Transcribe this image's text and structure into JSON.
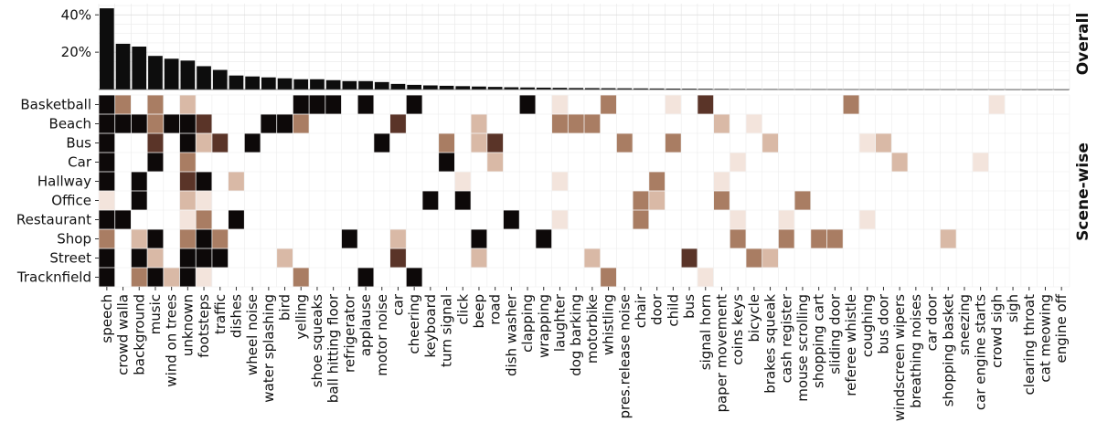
{
  "chart_data": [
    {
      "type": "bar",
      "panel": "Overall",
      "categories": [
        "speech",
        "crowd walla",
        "background",
        "music",
        "wind on trees",
        "unknown",
        "footsteps",
        "traffic",
        "dishes",
        "wheel noise",
        "water splashing",
        "bird",
        "yelling",
        "shoe squeaks",
        "ball hitting floor",
        "refrigerator",
        "applause",
        "motor noise",
        "car",
        "cheering",
        "keyboard",
        "turn signal",
        "click",
        "beep",
        "road",
        "dish washer",
        "clapping",
        "wrapping",
        "laughter",
        "dog barking",
        "motorbike",
        "whistling",
        "pres.release noise",
        "chair",
        "door",
        "child",
        "bus",
        "signal horn",
        "paper movement",
        "coins keys",
        "bicycle",
        "brakes squeak",
        "cash register",
        "mouse scrolling",
        "shopping cart",
        "sliding door",
        "referee whistle",
        "coughing",
        "bus door",
        "windscreen wipers",
        "breathing noises",
        "car door",
        "shopping basket",
        "sneezing",
        "car engine starts",
        "crowd sigh",
        "sigh",
        "clearing throat",
        "cat meowing",
        "engine off"
      ],
      "values": [
        43.5,
        24.5,
        23,
        18,
        16.5,
        15.5,
        12.5,
        10.5,
        7.5,
        7,
        6.5,
        6,
        5.5,
        5.5,
        5,
        4.5,
        4.5,
        4,
        3,
        2.5,
        2.2,
        2,
        1.8,
        1.6,
        1.4,
        1.2,
        1.1,
        1,
        0.9,
        0.8,
        0.75,
        0.7,
        0.65,
        0.6,
        0.55,
        0.5,
        0.45,
        0.4,
        0.35,
        0.3,
        0.28,
        0.26,
        0.24,
        0.22,
        0.2,
        0.18,
        0.16,
        0.14,
        0.12,
        0.11,
        0.1,
        0.09,
        0.08,
        0.07,
        0.06,
        0.05,
        0.04,
        0.03,
        0.02,
        0.01
      ],
      "yticks": [
        "20%",
        "40%"
      ],
      "ytick_values": [
        20,
        40
      ],
      "ylim": [
        0,
        46
      ],
      "bar_color": "#0d0d0d",
      "grid": true
    },
    {
      "type": "heatmap",
      "panel": "Scene-wise",
      "rows": [
        "Basketball",
        "Beach",
        "Bus",
        "Car",
        "Hallway",
        "Office",
        "Restaurant",
        "Shop",
        "Street",
        "Tracknfield"
      ],
      "scale": "0 = none (white), 1 = light tan, 2 = tan, 3 = brown, 4 = dark brown, 5 = black",
      "palette": [
        "#ffffff",
        "#f3e4dc",
        "#d9b9a6",
        "#a97d63",
        "#5a3428",
        "#0d0909"
      ],
      "cells": [
        {
          "row": "Basketball",
          "col": "speech",
          "v": 5
        },
        {
          "row": "Basketball",
          "col": "crowd walla",
          "v": 3
        },
        {
          "row": "Basketball",
          "col": "music",
          "v": 3
        },
        {
          "row": "Basketball",
          "col": "unknown",
          "v": 2
        },
        {
          "row": "Basketball",
          "col": "yelling",
          "v": 5
        },
        {
          "row": "Basketball",
          "col": "shoe squeaks",
          "v": 5
        },
        {
          "row": "Basketball",
          "col": "ball hitting floor",
          "v": 5
        },
        {
          "row": "Basketball",
          "col": "applause",
          "v": 5
        },
        {
          "row": "Basketball",
          "col": "cheering",
          "v": 5
        },
        {
          "row": "Basketball",
          "col": "clapping",
          "v": 5
        },
        {
          "row": "Basketball",
          "col": "laughter",
          "v": 1
        },
        {
          "row": "Basketball",
          "col": "whistling",
          "v": 3
        },
        {
          "row": "Basketball",
          "col": "child",
          "v": 1
        },
        {
          "row": "Basketball",
          "col": "signal horn",
          "v": 4
        },
        {
          "row": "Basketball",
          "col": "referee whistle",
          "v": 3
        },
        {
          "row": "Basketball",
          "col": "crowd sigh",
          "v": 1
        },
        {
          "row": "Beach",
          "col": "speech",
          "v": 5
        },
        {
          "row": "Beach",
          "col": "crowd walla",
          "v": 5
        },
        {
          "row": "Beach",
          "col": "background",
          "v": 5
        },
        {
          "row": "Beach",
          "col": "music",
          "v": 3
        },
        {
          "row": "Beach",
          "col": "wind on trees",
          "v": 5
        },
        {
          "row": "Beach",
          "col": "unknown",
          "v": 5
        },
        {
          "row": "Beach",
          "col": "footsteps",
          "v": 4
        },
        {
          "row": "Beach",
          "col": "water splashing",
          "v": 5
        },
        {
          "row": "Beach",
          "col": "bird",
          "v": 5
        },
        {
          "row": "Beach",
          "col": "yelling",
          "v": 3
        },
        {
          "row": "Beach",
          "col": "car",
          "v": 4
        },
        {
          "row": "Beach",
          "col": "beep",
          "v": 2
        },
        {
          "row": "Beach",
          "col": "laughter",
          "v": 3
        },
        {
          "row": "Beach",
          "col": "dog barking",
          "v": 3
        },
        {
          "row": "Beach",
          "col": "motorbike",
          "v": 3
        },
        {
          "row": "Beach",
          "col": "paper movement",
          "v": 2
        },
        {
          "row": "Beach",
          "col": "bicycle",
          "v": 1
        },
        {
          "row": "Bus",
          "col": "speech",
          "v": 5
        },
        {
          "row": "Bus",
          "col": "music",
          "v": 4
        },
        {
          "row": "Bus",
          "col": "unknown",
          "v": 5
        },
        {
          "row": "Bus",
          "col": "footsteps",
          "v": 2
        },
        {
          "row": "Bus",
          "col": "traffic",
          "v": 4
        },
        {
          "row": "Bus",
          "col": "wheel noise",
          "v": 5
        },
        {
          "row": "Bus",
          "col": "motor noise",
          "v": 5
        },
        {
          "row": "Bus",
          "col": "turn signal",
          "v": 3
        },
        {
          "row": "Bus",
          "col": "beep",
          "v": 2
        },
        {
          "row": "Bus",
          "col": "road",
          "v": 4
        },
        {
          "row": "Bus",
          "col": "pres.release noise",
          "v": 3
        },
        {
          "row": "Bus",
          "col": "child",
          "v": 3
        },
        {
          "row": "Bus",
          "col": "brakes squeak",
          "v": 2
        },
        {
          "row": "Bus",
          "col": "coughing",
          "v": 1
        },
        {
          "row": "Bus",
          "col": "bus door",
          "v": 2
        },
        {
          "row": "Car",
          "col": "speech",
          "v": 5
        },
        {
          "row": "Car",
          "col": "music",
          "v": 5
        },
        {
          "row": "Car",
          "col": "unknown",
          "v": 3
        },
        {
          "row": "Car",
          "col": "turn signal",
          "v": 5
        },
        {
          "row": "Car",
          "col": "road",
          "v": 2
        },
        {
          "row": "Car",
          "col": "coins keys",
          "v": 1
        },
        {
          "row": "Car",
          "col": "windscreen wipers",
          "v": 2
        },
        {
          "row": "Car",
          "col": "car engine starts",
          "v": 1
        },
        {
          "row": "Hallway",
          "col": "speech",
          "v": 5
        },
        {
          "row": "Hallway",
          "col": "background",
          "v": 5
        },
        {
          "row": "Hallway",
          "col": "unknown",
          "v": 4
        },
        {
          "row": "Hallway",
          "col": "footsteps",
          "v": 5
        },
        {
          "row": "Hallway",
          "col": "dishes",
          "v": 2
        },
        {
          "row": "Hallway",
          "col": "click",
          "v": 1
        },
        {
          "row": "Hallway",
          "col": "laughter",
          "v": 1
        },
        {
          "row": "Hallway",
          "col": "door",
          "v": 3
        },
        {
          "row": "Hallway",
          "col": "paper movement",
          "v": 1
        },
        {
          "row": "Office",
          "col": "speech",
          "v": 1
        },
        {
          "row": "Office",
          "col": "background",
          "v": 5
        },
        {
          "row": "Office",
          "col": "unknown",
          "v": 2
        },
        {
          "row": "Office",
          "col": "footsteps",
          "v": 1
        },
        {
          "row": "Office",
          "col": "keyboard",
          "v": 5
        },
        {
          "row": "Office",
          "col": "click",
          "v": 5
        },
        {
          "row": "Office",
          "col": "chair",
          "v": 3
        },
        {
          "row": "Office",
          "col": "door",
          "v": 2
        },
        {
          "row": "Office",
          "col": "paper movement",
          "v": 3
        },
        {
          "row": "Office",
          "col": "mouse scrolling",
          "v": 3
        },
        {
          "row": "Restaurant",
          "col": "speech",
          "v": 5
        },
        {
          "row": "Restaurant",
          "col": "crowd walla",
          "v": 5
        },
        {
          "row": "Restaurant",
          "col": "unknown",
          "v": 1
        },
        {
          "row": "Restaurant",
          "col": "footsteps",
          "v": 3
        },
        {
          "row": "Restaurant",
          "col": "dishes",
          "v": 5
        },
        {
          "row": "Restaurant",
          "col": "dish washer",
          "v": 5
        },
        {
          "row": "Restaurant",
          "col": "laughter",
          "v": 1
        },
        {
          "row": "Restaurant",
          "col": "chair",
          "v": 3
        },
        {
          "row": "Restaurant",
          "col": "coins keys",
          "v": 1
        },
        {
          "row": "Restaurant",
          "col": "cash register",
          "v": 1
        },
        {
          "row": "Restaurant",
          "col": "coughing",
          "v": 1
        },
        {
          "row": "Shop",
          "col": "speech",
          "v": 3
        },
        {
          "row": "Shop",
          "col": "background",
          "v": 2
        },
        {
          "row": "Shop",
          "col": "music",
          "v": 5
        },
        {
          "row": "Shop",
          "col": "unknown",
          "v": 3
        },
        {
          "row": "Shop",
          "col": "footsteps",
          "v": 5
        },
        {
          "row": "Shop",
          "col": "traffic",
          "v": 3
        },
        {
          "row": "Shop",
          "col": "refrigerator",
          "v": 5
        },
        {
          "row": "Shop",
          "col": "car",
          "v": 2
        },
        {
          "row": "Shop",
          "col": "beep",
          "v": 5
        },
        {
          "row": "Shop",
          "col": "wrapping",
          "v": 5
        },
        {
          "row": "Shop",
          "col": "coins keys",
          "v": 3
        },
        {
          "row": "Shop",
          "col": "cash register",
          "v": 3
        },
        {
          "row": "Shop",
          "col": "shopping cart",
          "v": 3
        },
        {
          "row": "Shop",
          "col": "sliding door",
          "v": 3
        },
        {
          "row": "Shop",
          "col": "shopping basket",
          "v": 2
        },
        {
          "row": "Street",
          "col": "speech",
          "v": 5
        },
        {
          "row": "Street",
          "col": "background",
          "v": 5
        },
        {
          "row": "Street",
          "col": "music",
          "v": 2
        },
        {
          "row": "Street",
          "col": "unknown",
          "v": 5
        },
        {
          "row": "Street",
          "col": "footsteps",
          "v": 5
        },
        {
          "row": "Street",
          "col": "traffic",
          "v": 5
        },
        {
          "row": "Street",
          "col": "bird",
          "v": 2
        },
        {
          "row": "Street",
          "col": "car",
          "v": 4
        },
        {
          "row": "Street",
          "col": "beep",
          "v": 2
        },
        {
          "row": "Street",
          "col": "motorbike",
          "v": 2
        },
        {
          "row": "Street",
          "col": "bus",
          "v": 4
        },
        {
          "row": "Street",
          "col": "bicycle",
          "v": 3
        },
        {
          "row": "Street",
          "col": "brakes squeak",
          "v": 2
        },
        {
          "row": "Tracknfield",
          "col": "speech",
          "v": 5
        },
        {
          "row": "Tracknfield",
          "col": "background",
          "v": 3
        },
        {
          "row": "Tracknfield",
          "col": "music",
          "v": 5
        },
        {
          "row": "Tracknfield",
          "col": "wind on trees",
          "v": 2
        },
        {
          "row": "Tracknfield",
          "col": "unknown",
          "v": 5
        },
        {
          "row": "Tracknfield",
          "col": "footsteps",
          "v": 1
        },
        {
          "row": "Tracknfield",
          "col": "yelling",
          "v": 3
        },
        {
          "row": "Tracknfield",
          "col": "applause",
          "v": 5
        },
        {
          "row": "Tracknfield",
          "col": "cheering",
          "v": 5
        },
        {
          "row": "Tracknfield",
          "col": "whistling",
          "v": 3
        },
        {
          "row": "Tracknfield",
          "col": "signal horn",
          "v": 1
        }
      ]
    }
  ]
}
